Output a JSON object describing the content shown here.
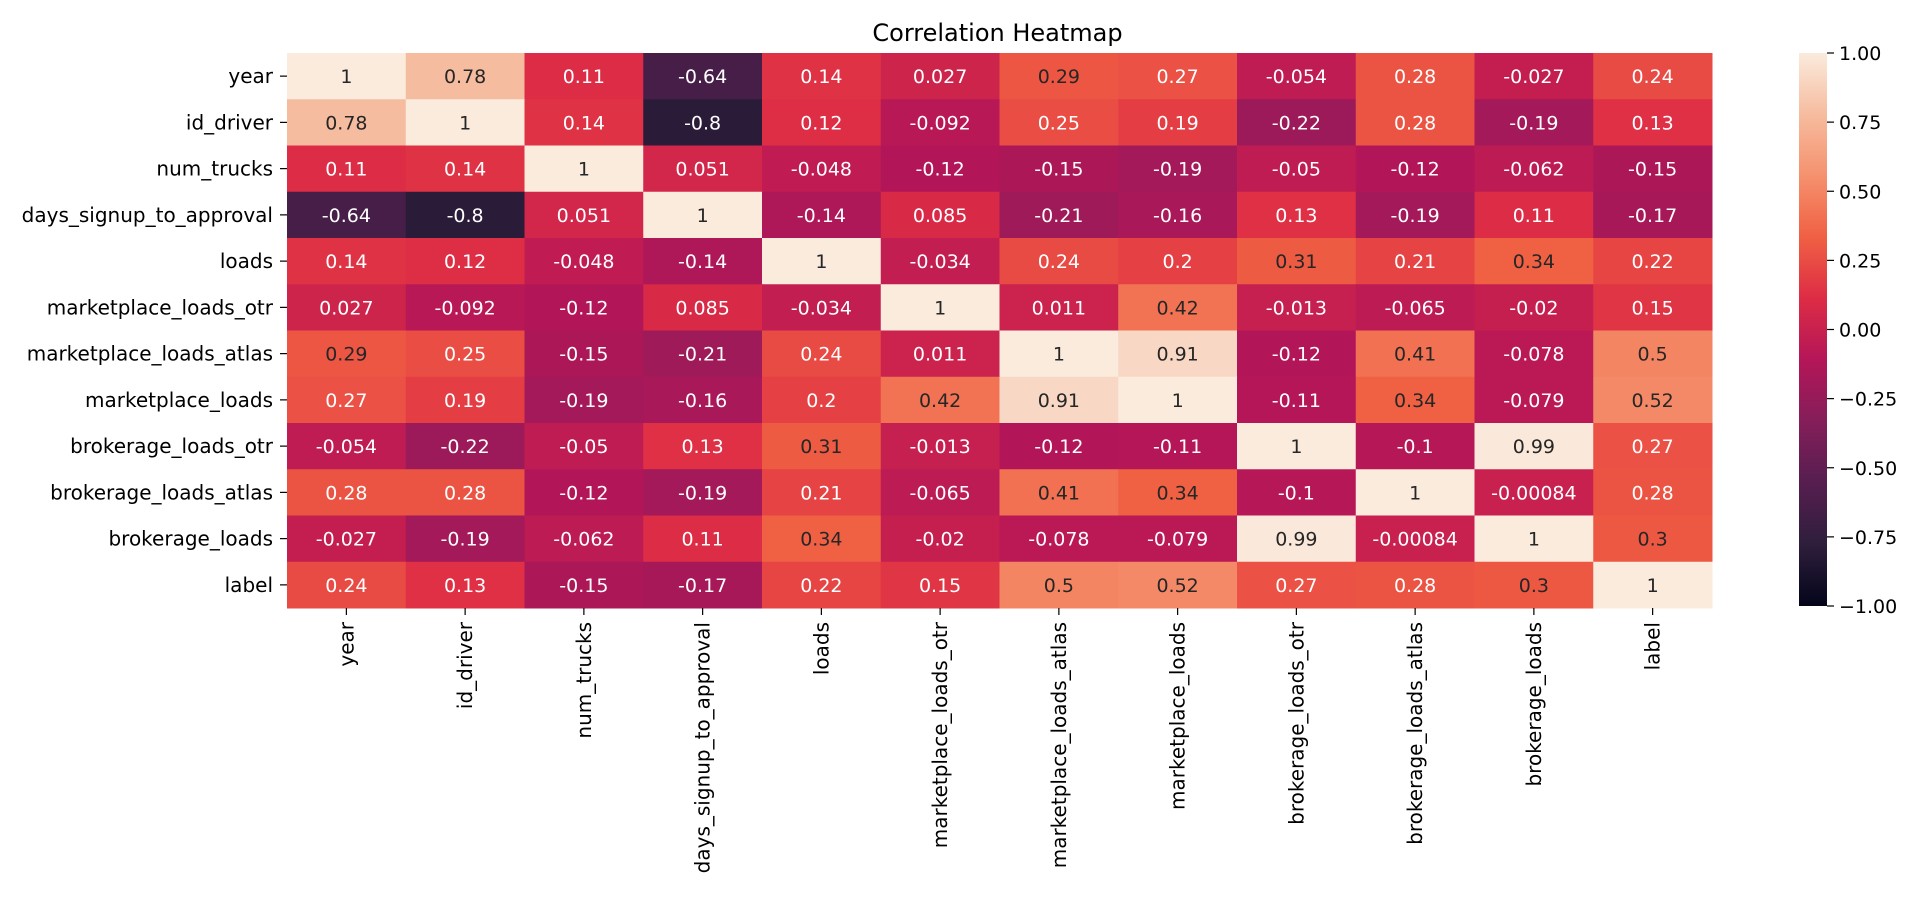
{
  "chart_data": {
    "type": "heatmap",
    "title": "Correlation Heatmap",
    "xlabel": "",
    "ylabel": "",
    "x_categories": [
      "year",
      "id_driver",
      "num_trucks",
      "days_signup_to_approval",
      "loads",
      "marketplace_loads_otr",
      "marketplace_loads_atlas",
      "marketplace_loads",
      "brokerage_loads_otr",
      "brokerage_loads_atlas",
      "brokerage_loads",
      "label"
    ],
    "y_categories": [
      "year",
      "id_driver",
      "num_trucks",
      "days_signup_to_approval",
      "loads",
      "marketplace_loads_otr",
      "marketplace_loads_atlas",
      "marketplace_loads",
      "brokerage_loads_otr",
      "brokerage_loads_atlas",
      "brokerage_loads",
      "label"
    ],
    "values": [
      [
        1,
        0.78,
        0.11,
        -0.64,
        0.14,
        0.027,
        0.29,
        0.27,
        -0.054,
        0.28,
        -0.027,
        0.24
      ],
      [
        0.78,
        1,
        0.14,
        -0.8,
        0.12,
        -0.092,
        0.25,
        0.19,
        -0.22,
        0.28,
        -0.19,
        0.13
      ],
      [
        0.11,
        0.14,
        1,
        0.051,
        -0.048,
        -0.12,
        -0.15,
        -0.19,
        -0.05,
        -0.12,
        -0.062,
        -0.15
      ],
      [
        -0.64,
        -0.8,
        0.051,
        1,
        -0.14,
        0.085,
        -0.21,
        -0.16,
        0.13,
        -0.19,
        0.11,
        -0.17
      ],
      [
        0.14,
        0.12,
        -0.048,
        -0.14,
        1,
        -0.034,
        0.24,
        0.2,
        0.31,
        0.21,
        0.34,
        0.22
      ],
      [
        0.027,
        -0.092,
        -0.12,
        0.085,
        -0.034,
        1,
        0.011,
        0.42,
        -0.013,
        -0.065,
        -0.02,
        0.15
      ],
      [
        0.29,
        0.25,
        -0.15,
        -0.21,
        0.24,
        0.011,
        1,
        0.91,
        -0.12,
        0.41,
        -0.078,
        0.5
      ],
      [
        0.27,
        0.19,
        -0.19,
        -0.16,
        0.2,
        0.42,
        0.91,
        1,
        -0.11,
        0.34,
        -0.079,
        0.52
      ],
      [
        -0.054,
        -0.22,
        -0.05,
        0.13,
        0.31,
        -0.013,
        -0.12,
        -0.11,
        1,
        -0.1,
        0.99,
        0.27
      ],
      [
        0.28,
        0.28,
        -0.12,
        -0.19,
        0.21,
        -0.065,
        0.41,
        0.34,
        -0.1,
        1,
        -0.00084,
        0.28
      ],
      [
        -0.027,
        -0.19,
        -0.062,
        0.11,
        0.34,
        -0.02,
        -0.078,
        -0.079,
        0.99,
        -0.00084,
        1,
        0.3
      ],
      [
        0.24,
        0.13,
        -0.15,
        -0.17,
        0.22,
        0.15,
        0.5,
        0.52,
        0.27,
        0.28,
        0.3,
        1
      ]
    ],
    "value_labels": [
      [
        "1",
        "0.78",
        "0.11",
        "-0.64",
        "0.14",
        "0.027",
        "0.29",
        "0.27",
        "-0.054",
        "0.28",
        "-0.027",
        "0.24"
      ],
      [
        "0.78",
        "1",
        "0.14",
        "-0.8",
        "0.12",
        "-0.092",
        "0.25",
        "0.19",
        "-0.22",
        "0.28",
        "-0.19",
        "0.13"
      ],
      [
        "0.11",
        "0.14",
        "1",
        "0.051",
        "-0.048",
        "-0.12",
        "-0.15",
        "-0.19",
        "-0.05",
        "-0.12",
        "-0.062",
        "-0.15"
      ],
      [
        "-0.64",
        "-0.8",
        "0.051",
        "1",
        "-0.14",
        "0.085",
        "-0.21",
        "-0.16",
        "0.13",
        "-0.19",
        "0.11",
        "-0.17"
      ],
      [
        "0.14",
        "0.12",
        "-0.048",
        "-0.14",
        "1",
        "-0.034",
        "0.24",
        "0.2",
        "0.31",
        "0.21",
        "0.34",
        "0.22"
      ],
      [
        "0.027",
        "-0.092",
        "-0.12",
        "0.085",
        "-0.034",
        "1",
        "0.011",
        "0.42",
        "-0.013",
        "-0.065",
        "-0.02",
        "0.15"
      ],
      [
        "0.29",
        "0.25",
        "-0.15",
        "-0.21",
        "0.24",
        "0.011",
        "1",
        "0.91",
        "-0.12",
        "0.41",
        "-0.078",
        "0.5"
      ],
      [
        "0.27",
        "0.19",
        "-0.19",
        "-0.16",
        "0.2",
        "0.42",
        "0.91",
        "1",
        "-0.11",
        "0.34",
        "-0.079",
        "0.52"
      ],
      [
        "-0.054",
        "-0.22",
        "-0.05",
        "0.13",
        "0.31",
        "-0.013",
        "-0.12",
        "-0.11",
        "1",
        "-0.1",
        "0.99",
        "0.27"
      ],
      [
        "0.28",
        "0.28",
        "-0.12",
        "-0.19",
        "0.21",
        "-0.065",
        "0.41",
        "0.34",
        "-0.1",
        "1",
        "-0.00084",
        "0.28"
      ],
      [
        "-0.027",
        "-0.19",
        "-0.062",
        "0.11",
        "0.34",
        "-0.02",
        "-0.078",
        "-0.079",
        "0.99",
        "-0.00084",
        "1",
        "0.3"
      ],
      [
        "0.24",
        "0.13",
        "-0.15",
        "-0.17",
        "0.22",
        "0.15",
        "0.5",
        "0.52",
        "0.27",
        "0.28",
        "0.3",
        "1"
      ]
    ],
    "colorbar": {
      "range": [
        -1,
        1
      ],
      "ticks": [
        1,
        0.75,
        0.5,
        0.25,
        0,
        -0.25,
        -0.5,
        -0.75,
        -1
      ],
      "tick_labels": [
        "1.00",
        "0.75",
        "0.50",
        "0.25",
        "0.00",
        "−0.25",
        "−0.50",
        "−0.75",
        "−1.00"
      ],
      "colormap": "rocket",
      "placement": "right"
    },
    "grid": false,
    "colormap_stops": [
      "#03051a",
      "#2e1e3c",
      "#561e4f",
      "#841e5a",
      "#b41658",
      "#dd2c45",
      "#f06043",
      "#f5916e",
      "#f6bc9f",
      "#faebdd"
    ]
  }
}
